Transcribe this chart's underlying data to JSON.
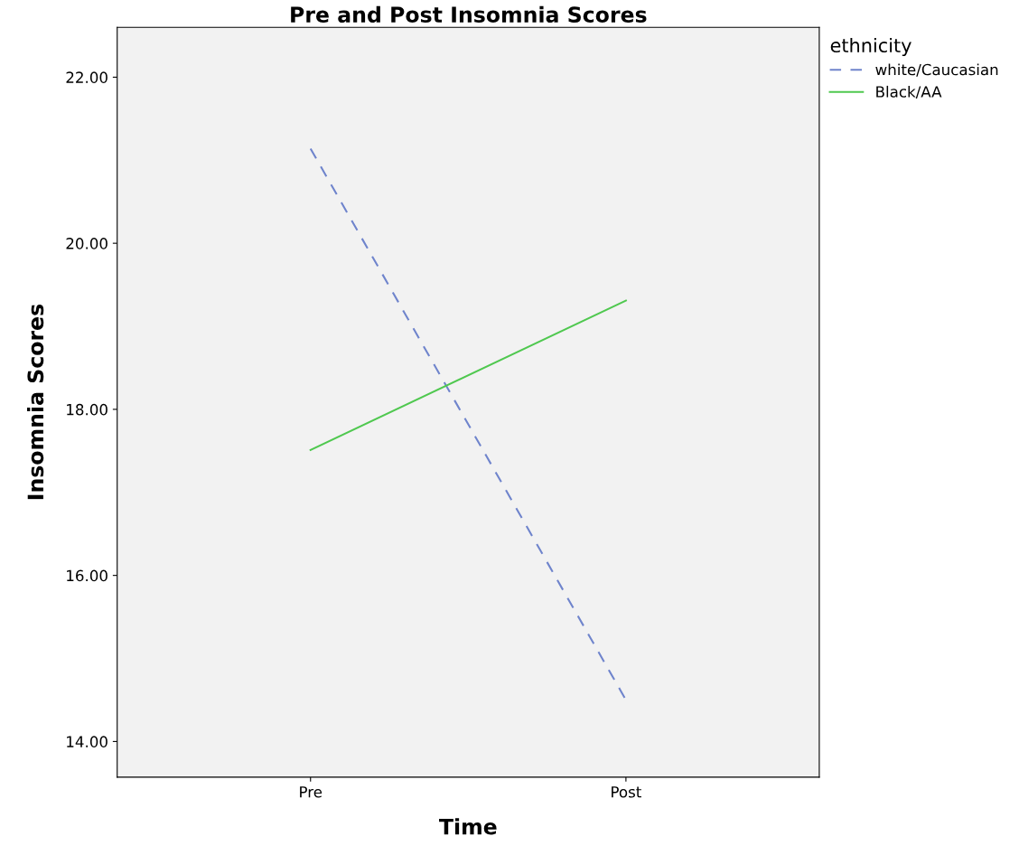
{
  "chart_data": {
    "type": "line",
    "title": "Pre and Post Insomnia Scores",
    "xlabel": "Time",
    "ylabel": "Insomnia Scores",
    "legend_title": "ethnicity",
    "categories": [
      "Pre",
      "Post"
    ],
    "series": [
      {
        "name": "white/Caucasian",
        "color": "#6f84cc",
        "values": [
          21.14,
          14.5
        ],
        "line_style": "dashed"
      },
      {
        "name": "Black/AA",
        "color": "#4fc84f",
        "values": [
          17.51,
          19.31
        ],
        "line_style": "solid"
      }
    ],
    "ylim": [
      13.57,
      22.6
    ],
    "yticks": [
      {
        "value": 14,
        "label": "14.00"
      },
      {
        "value": 16,
        "label": "16.00"
      },
      {
        "value": 18,
        "label": "18.00"
      },
      {
        "value": 20,
        "label": "20.00"
      },
      {
        "value": 22,
        "label": "22.00"
      }
    ],
    "grid": false,
    "legend": "top right",
    "marker": "none"
  }
}
